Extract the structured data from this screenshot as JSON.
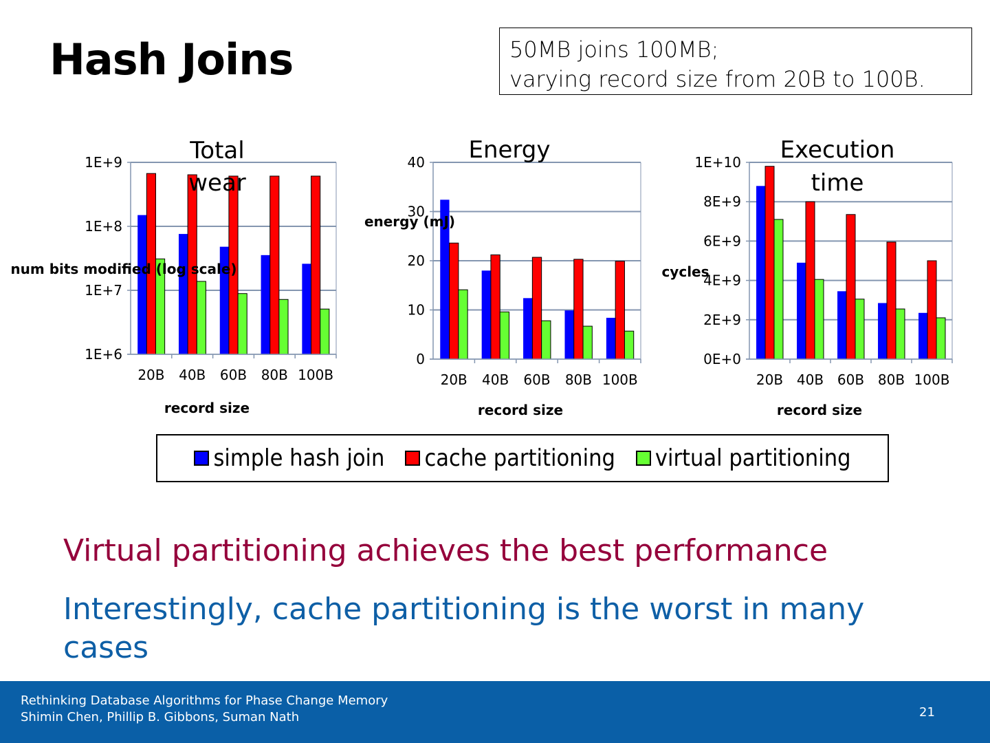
{
  "slide": {
    "title": "Hash Joins",
    "note_lines": [
      "50MB joins 100MB;",
      "varying record size from 20B to 100B."
    ],
    "bullets": [
      "Virtual partitioning achieves the best performance",
      "Interestingly, cache partitioning is the worst in many cases"
    ],
    "footer": {
      "line1": "Rethinking Database Algorithms for Phase Change Memory",
      "line2": "Shimin Chen, Phillip B. Gibbons, Suman Nath",
      "page": "21"
    }
  },
  "legend": [
    {
      "name": "simple hash join",
      "color": "#0000ff"
    },
    {
      "name": "cache partitioning",
      "color": "#ff0000"
    },
    {
      "name": "virtual partitioning",
      "color": "#66ff33"
    }
  ],
  "chart_data": [
    {
      "type": "bar",
      "title": "Total wear",
      "title_lines": [
        "Total",
        "wear"
      ],
      "xlabel": "record size",
      "ylabel": "num bits modified (log scale)",
      "yscale": "log",
      "ylim": [
        1000000,
        1000000000
      ],
      "yticks": [
        1000000,
        10000000,
        100000000,
        1000000000
      ],
      "ytick_labels": [
        "1E+6",
        "1E+7",
        "1E+8",
        "1E+9"
      ],
      "categories": [
        "20B",
        "40B",
        "60B",
        "80B",
        "100B"
      ],
      "grid": true,
      "series": [
        {
          "name": "simple hash join",
          "values": [
            150000000,
            76000000,
            48000000,
            35500000,
            26000000
          ]
        },
        {
          "name": "cache partitioning",
          "values": [
            670000000,
            640000000,
            610000000,
            610000000,
            610000000
          ]
        },
        {
          "name": "virtual partitioning",
          "values": [
            31000000,
            13800000,
            8900000,
            7200000,
            5100000
          ]
        }
      ]
    },
    {
      "type": "bar",
      "title": "Energy",
      "title_lines": [
        "Energy"
      ],
      "xlabel": "record size",
      "ylabel": "energy (mJ)",
      "yscale": "linear",
      "ylim": [
        0,
        40
      ],
      "yticks": [
        0,
        10,
        20,
        30,
        40
      ],
      "ytick_labels": [
        "0",
        "10",
        "20",
        "30",
        "40"
      ],
      "categories": [
        "20B",
        "40B",
        "60B",
        "80B",
        "100B"
      ],
      "grid": true,
      "series": [
        {
          "name": "simple hash join",
          "values": [
            32.4,
            18.0,
            12.4,
            9.9,
            8.4
          ]
        },
        {
          "name": "cache partitioning",
          "values": [
            23.6,
            21.2,
            20.7,
            20.3,
            19.9
          ]
        },
        {
          "name": "virtual partitioning",
          "values": [
            14.1,
            9.6,
            7.8,
            6.7,
            5.7
          ]
        }
      ]
    },
    {
      "type": "bar",
      "title": "Execution time",
      "title_lines": [
        "Execution",
        "time"
      ],
      "xlabel": "record size",
      "ylabel": "cycles",
      "yscale": "linear",
      "ylim": [
        0,
        10000000000
      ],
      "yticks": [
        0,
        2000000000,
        4000000000,
        6000000000,
        8000000000,
        10000000000
      ],
      "ytick_labels": [
        "0E+0",
        "2E+9",
        "4E+9",
        "6E+9",
        "8E+9",
        "1E+10"
      ],
      "categories": [
        "20B",
        "40B",
        "60B",
        "80B",
        "100B"
      ],
      "grid": true,
      "series": [
        {
          "name": "simple hash join",
          "values": [
            8800000000,
            4900000000,
            3450000000,
            2850000000,
            2350000000
          ]
        },
        {
          "name": "cache partitioning",
          "values": [
            9800000000,
            8000000000,
            7350000000,
            5950000000,
            5000000000
          ]
        },
        {
          "name": "virtual partitioning",
          "values": [
            7100000000,
            4050000000,
            3050000000,
            2550000000,
            2100000000
          ]
        }
      ]
    }
  ]
}
